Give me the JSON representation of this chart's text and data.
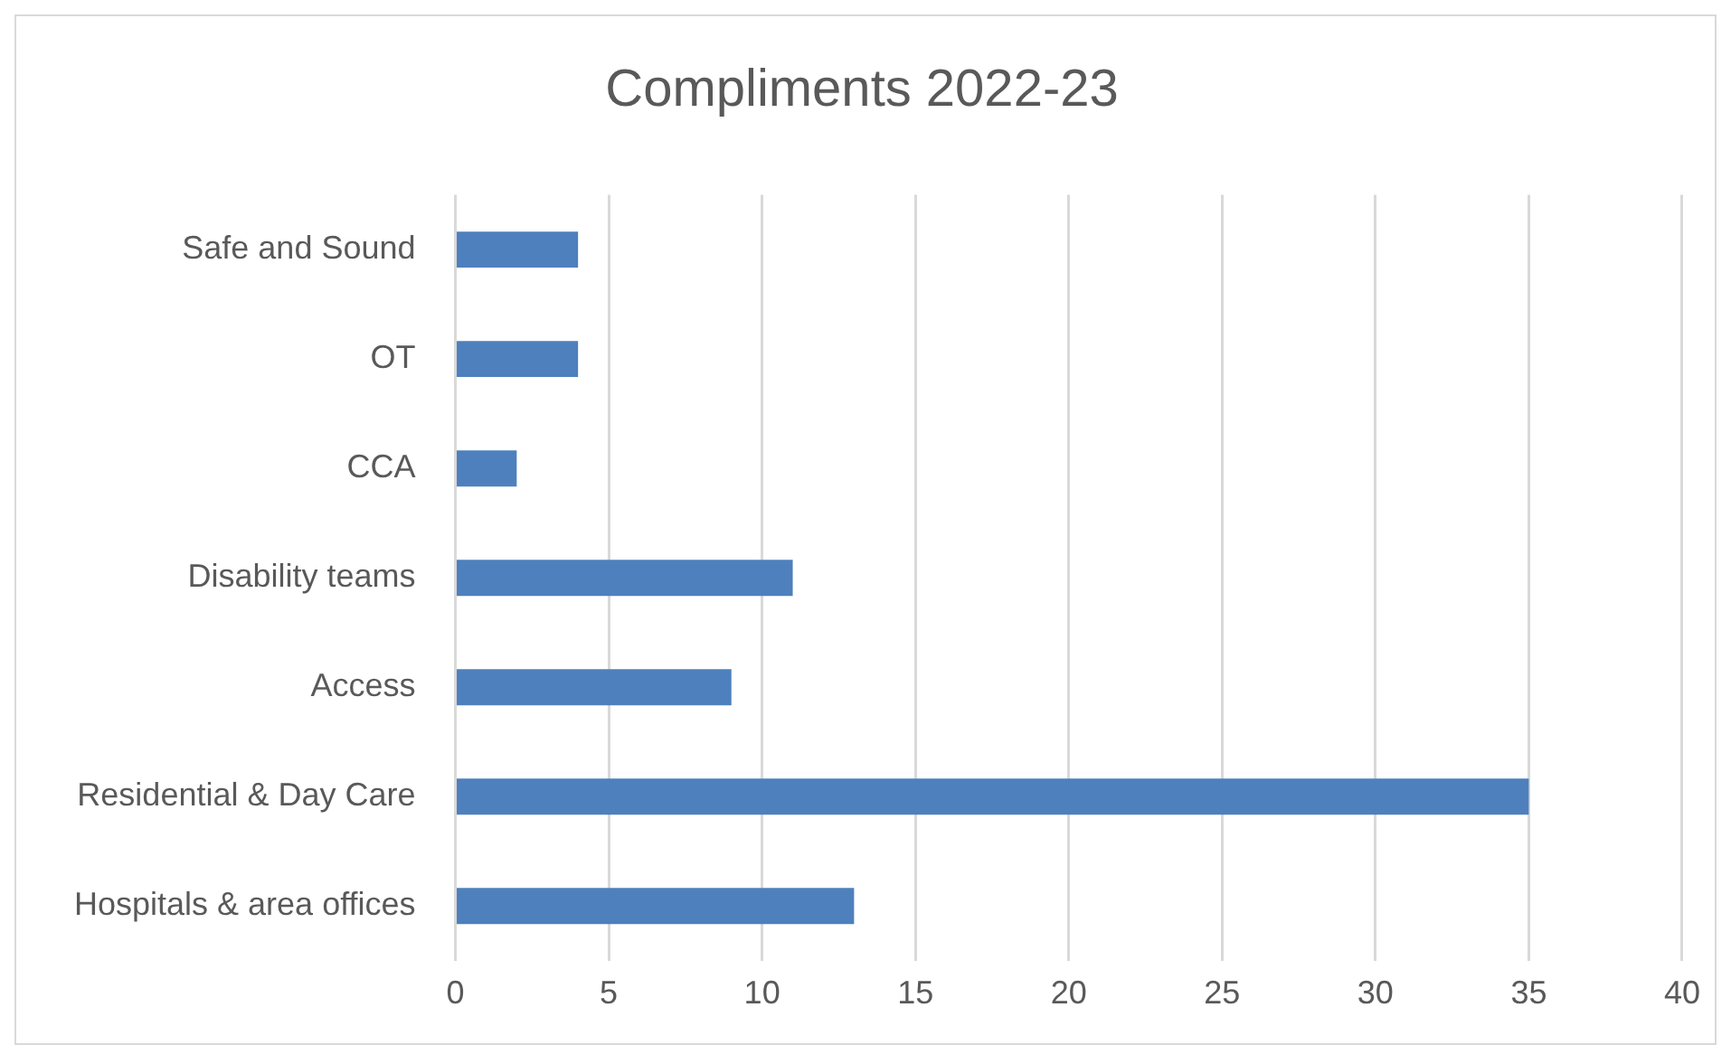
{
  "chart_data": {
    "type": "bar",
    "title": "Compliments 2022-23",
    "orientation": "horizontal",
    "categories": [
      "Safe and Sound",
      "OT",
      "CCA",
      "Disability teams",
      "Access",
      "Residential & Day Care",
      "Hospitals & area offices"
    ],
    "values": [
      4,
      4,
      2,
      11,
      9,
      35,
      13
    ],
    "color": "#4e80bd",
    "xlim": [
      0,
      40
    ],
    "xticks": [
      0,
      5,
      10,
      15,
      20,
      25,
      30,
      35,
      40
    ],
    "grid": "x"
  }
}
